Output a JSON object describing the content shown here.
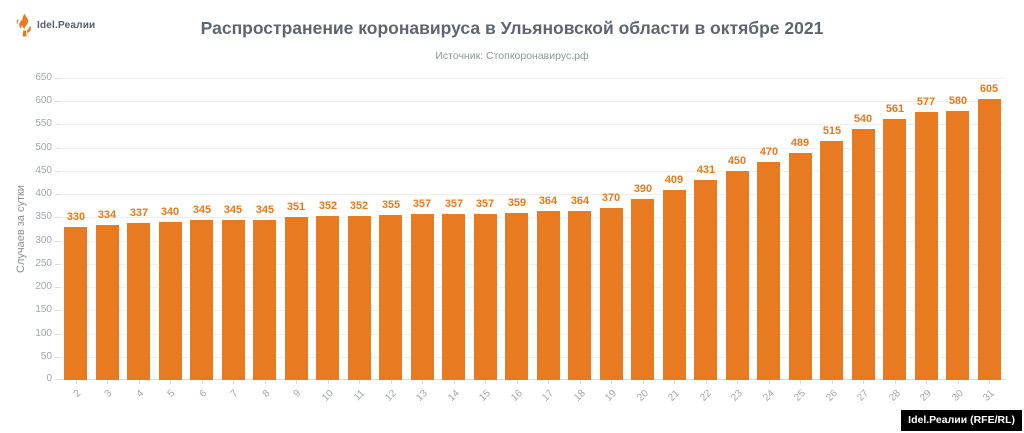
{
  "logo": {
    "brand": "Idel.Реалии"
  },
  "header": {
    "title": "Распространение коронавируса в Ульяновской области в октябре 2021",
    "subtitle": "Источник: Стопкоронавирус.рф"
  },
  "chart_data": {
    "type": "bar",
    "title": "Распространение коронавируса в Ульяновской области в октябре 2021",
    "subtitle": "Источник: Стопкоронавирус.рф",
    "categories": [
      "2",
      "3",
      "4",
      "5",
      "6",
      "7",
      "8",
      "9",
      "10",
      "11",
      "12",
      "13",
      "14",
      "15",
      "16",
      "17",
      "18",
      "19",
      "20",
      "21",
      "22",
      "23",
      "24",
      "25",
      "26",
      "27",
      "28",
      "29",
      "30",
      "31"
    ],
    "values": [
      330,
      334,
      337,
      340,
      345,
      345,
      345,
      351,
      352,
      352,
      355,
      357,
      357,
      357,
      359,
      364,
      364,
      370,
      390,
      409,
      431,
      450,
      470,
      489,
      515,
      540,
      561,
      577,
      580,
      605
    ],
    "xlabel": "",
    "ylabel": "Случаев за сутки",
    "ylim": [
      0,
      650
    ],
    "ytick_step": 50,
    "grid": true,
    "legend": "none",
    "bar_color": "#e87b22",
    "value_label_color": "#e8791b",
    "axis_text_color": "#9fa5ab"
  },
  "footer": {
    "credit": "Idel.Реалии (RFE/RL)"
  }
}
